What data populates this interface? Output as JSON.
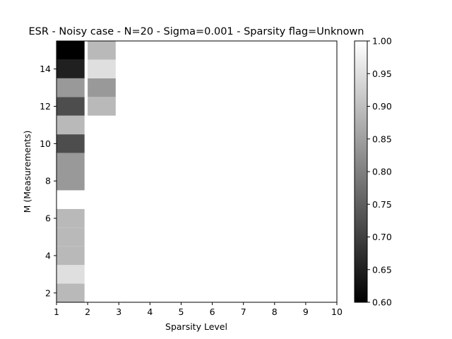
{
  "chart_data": {
    "type": "heatmap",
    "title": "ESR - Noisy case - N=20 - Sigma=0.001 - Sparsity flag=Unknown",
    "xlabel": "Sparsity Level",
    "ylabel": "M (Measurements)",
    "xlim": [
      1,
      10
    ],
    "ylim": [
      1,
      15
    ],
    "x_ticks": [
      1,
      2,
      3,
      4,
      5,
      6,
      7,
      8,
      9,
      10
    ],
    "y_ticks": [
      2,
      4,
      6,
      8,
      10,
      12,
      14
    ],
    "colormap": "gray",
    "colorbar": {
      "vmin": 0.6,
      "vmax": 1.0,
      "ticks": [
        "0.60",
        "0.65",
        "0.70",
        "0.75",
        "0.80",
        "0.85",
        "0.90",
        "0.95",
        "1.00"
      ]
    },
    "cell_width": 0.9,
    "cells": [
      {
        "sparsity": 1,
        "m": 2,
        "value": 0.89
      },
      {
        "sparsity": 1,
        "m": 3,
        "value": 0.95
      },
      {
        "sparsity": 1,
        "m": 4,
        "value": 0.89
      },
      {
        "sparsity": 1,
        "m": 5,
        "value": 0.89
      },
      {
        "sparsity": 1,
        "m": 6,
        "value": 0.89
      },
      {
        "sparsity": 1,
        "m": 7,
        "value": 1.0
      },
      {
        "sparsity": 1,
        "m": 8,
        "value": 0.84
      },
      {
        "sparsity": 1,
        "m": 9,
        "value": 0.84
      },
      {
        "sparsity": 1,
        "m": 10,
        "value": 0.72
      },
      {
        "sparsity": 1,
        "m": 11,
        "value": 0.89
      },
      {
        "sparsity": 1,
        "m": 12,
        "value": 0.72
      },
      {
        "sparsity": 1,
        "m": 13,
        "value": 0.84
      },
      {
        "sparsity": 1,
        "m": 14,
        "value": 0.65
      },
      {
        "sparsity": 1,
        "m": 15,
        "value": 0.6
      },
      {
        "sparsity": 2,
        "m": 12,
        "value": 0.89
      },
      {
        "sparsity": 2,
        "m": 13,
        "value": 0.84
      },
      {
        "sparsity": 2,
        "m": 14,
        "value": 0.95
      },
      {
        "sparsity": 2,
        "m": 15,
        "value": 0.89
      }
    ],
    "background_value": 1.0
  }
}
